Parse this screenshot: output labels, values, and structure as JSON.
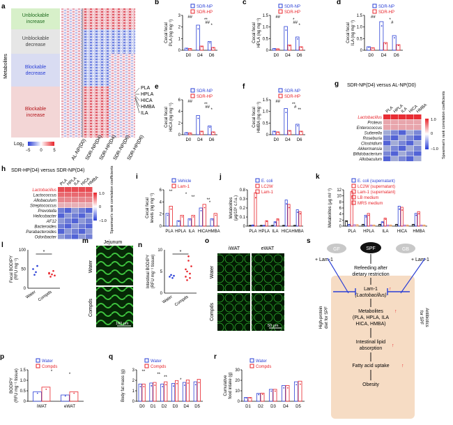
{
  "panel_labels": [
    "a",
    "b",
    "c",
    "d",
    "e",
    "f",
    "g",
    "h",
    "i",
    "j",
    "k",
    "l",
    "m",
    "n",
    "o",
    "p",
    "q",
    "r",
    "s"
  ],
  "colors": {
    "np": "#2a3fd6",
    "hp": "#e8232a",
    "green_box": "#d7f0c9",
    "grey_box": "#e6e6e6",
    "blue_box": "#d9dcf2",
    "pink_box": "#f3d6d6"
  },
  "heatmap_a": {
    "row_groups": [
      "Unblockable increase",
      "Unblockable decrease",
      "Blockable decrease",
      "Blockable increase"
    ],
    "ylabel": "Metabolites",
    "columns": [
      "AL-NP(D0)",
      "SDR-NP(D4)",
      "SDR-HP(D4)",
      "SDR-NP(D6)",
      "SDR-HP(D6)"
    ],
    "labels_right": [
      "PLA",
      "HPLA",
      "HICA",
      "HMBA",
      "ILA"
    ],
    "scale_title": "Log",
    "scale_title_sub": "2",
    "scale_ticks": [
      "−5",
      "0",
      "5"
    ]
  },
  "legend_np_hp": {
    "np": "SDR-NP",
    "hp": "SDR-HP"
  },
  "time_ticks": [
    "D0",
    "D4",
    "D6"
  ],
  "panel_b": {
    "ylabel1": "Cecal fecal",
    "ylabel2": "PLA (ng mg⁻¹)",
    "yticks": [
      "0",
      "1",
      "2",
      "3"
    ],
    "sig": [
      "##",
      "**",
      "##",
      "*"
    ]
  },
  "panel_c": {
    "ylabel1": "Cecal fecal",
    "ylabel2": "HPLA (ng mg⁻¹)",
    "yticks": [
      "0",
      "0.5",
      "1.0",
      "1.5"
    ],
    "sig": [
      "##",
      "*",
      "##",
      "*"
    ]
  },
  "panel_d": {
    "ylabel1": "Cecal fecal",
    "ylabel2": "ILA (ng mg⁻¹)",
    "yticks": [
      "0",
      "0.5",
      "1.0",
      "1.5"
    ],
    "sig": [
      "##",
      "*",
      "#"
    ]
  },
  "panel_e": {
    "ylabel1": "Cecal fecal",
    "ylabel2": "HICA (ng mg⁻¹)",
    "yticks": [
      "0",
      "2",
      "4",
      "6"
    ],
    "sig": [
      "##",
      "**",
      "##",
      "*"
    ]
  },
  "panel_f": {
    "ylabel1": "Cecal fecal",
    "ylabel2": "HMBA (ng mg⁻¹)",
    "yticks": [
      "0",
      "0.5",
      "1.0",
      "1.5"
    ],
    "sig": [
      "##",
      "**",
      "#",
      "**"
    ]
  },
  "panel_g": {
    "title": "SDR-NP(D4) versus AL-NP(D0)",
    "cols": [
      "PLA",
      "HPLA",
      "ILA",
      "HICA",
      "HMBA"
    ],
    "rows": [
      "Lactobacillus",
      "Proteus",
      "Enterococcus",
      "Sutterella",
      "Roseburia",
      "Clostridium",
      "Akkermansia",
      "Bifidobacterium",
      "Allobaculum"
    ],
    "scale_label": "Spearman's rank correlation coefficients",
    "scale_ticks": [
      "1.0",
      "0.5",
      "0",
      "−0.5",
      "−1.0"
    ]
  },
  "panel_h": {
    "title": "SDR-HP(D4) versus SDR-NP(D4)",
    "cols": [
      "PLA",
      "HPLA",
      "ILA",
      "HICA",
      "HMBA"
    ],
    "rows": [
      "Lactobacillus",
      "Lactococcus",
      "Allobaculum",
      "Streptococcus",
      "Prevotella",
      "Helicobacter",
      "AF12",
      "Bacteroides",
      "Parabacteroides",
      "Odoribacter"
    ],
    "scale_label": "Spearman's rank correlation coefficients",
    "scale_ticks": [
      "1.0",
      "0.5",
      "0",
      "−0.5",
      "−1.0"
    ]
  },
  "panel_i": {
    "legend": [
      "Vehicle",
      "Lam-1"
    ],
    "ylabel1": "Cecal fecal",
    "ylabel2": "levels (ng mg⁻¹)",
    "yticks": [
      "0",
      "2",
      "4",
      "6"
    ],
    "cats": [
      "PLA",
      "HPLA",
      "ILA",
      "HICA",
      "HMBA"
    ],
    "sig": [
      "**",
      "*",
      "**",
      "**",
      "*"
    ]
  },
  "panel_j": {
    "legend": [
      "E. coli",
      "LC2W",
      "Lam-1"
    ],
    "ylabel1": "Metabolites",
    "ylabel2": "(μg/10⁹ c.f.u.)",
    "yticks": [
      "0",
      "0.1",
      "0.2",
      "0.3",
      "0.5",
      "0.6",
      "0.7",
      "0.8"
    ],
    "cats": [
      "PLA",
      "HPLA",
      "ILA",
      "HICA",
      "HMBA"
    ]
  },
  "panel_k": {
    "legend": [
      "E. coli (supernatant)",
      "LC2W (supernatant)",
      "Lam-1 (supernatant)",
      "LB medium",
      "MRS medium"
    ],
    "ylabel": "Metabolites (μg ml⁻¹)",
    "yticks": [
      "0",
      "2",
      "4",
      "6",
      "8",
      "10",
      "12"
    ],
    "cats": [
      "PLA",
      "HPLA",
      "ILA",
      "HICA",
      "HMBA"
    ],
    "ns": "NS"
  },
  "panel_l": {
    "ylabel1": "Fecal BODIPY",
    "ylabel2": "(RFU mg⁻¹)",
    "yticks": [
      "0",
      "50",
      "100"
    ],
    "cats": [
      "Water",
      "Compds"
    ],
    "sig": "*"
  },
  "panel_m": {
    "title": "Jejunum",
    "rows": [
      "Water",
      "Compds"
    ],
    "scale": "100 μm"
  },
  "panel_n": {
    "ylabel1": "Intestinal BODIPY",
    "ylabel2": "(RFU mg⁻¹ tissue)",
    "yticks": [
      "0",
      "5",
      "10"
    ],
    "cats": [
      "Water",
      "Compds"
    ],
    "sig": "*"
  },
  "panel_o": {
    "cols": [
      "iWAT",
      "eWAT"
    ],
    "rows": [
      "Water",
      "Compds"
    ],
    "scale": "50 μm"
  },
  "panel_p": {
    "legend": [
      "Water",
      "Compds"
    ],
    "ylabel1": "BODIPY",
    "ylabel2": "(RFU mg⁻¹ tissue)",
    "yticks": [
      "0",
      "0.5",
      "1.0",
      "1.5"
    ],
    "cats": [
      "iWAT",
      "eWAT"
    ],
    "sig": [
      "*",
      "*"
    ]
  },
  "panel_q": {
    "legend": [
      "Water",
      "Compds"
    ],
    "ylabel": "Body fat mass (g)",
    "yticks": [
      "0",
      "1",
      "2",
      "3"
    ],
    "cats": [
      "D0",
      "D1",
      "D2",
      "D3",
      "D4",
      "D5"
    ],
    "sig": [
      "**",
      "**",
      "**",
      "*"
    ]
  },
  "panel_r": {
    "legend": [
      "Water",
      "Compds"
    ],
    "ylabel1": "Cumulative",
    "ylabel2": "food intake (g)",
    "yticks": [
      "0",
      "10",
      "20",
      "30"
    ],
    "cats": [
      "D1",
      "D2",
      "D3",
      "D4",
      "D5"
    ]
  },
  "panel_s": {
    "gf": "GF",
    "spf": "SPF",
    "gb": "GB",
    "lam_left": "+ Lam-1",
    "lam_right": "+ Lam-1",
    "refeed": "Refeeding after dietary restriction",
    "lam": "Lam-1",
    "lam_sub": "(Lactobacillus)",
    "metab": "Metabolites",
    "metab_sub": "(PLA, HPLA, ILA HICA, HMBA)",
    "lipid": "Intestinal lipid absorption",
    "fatty": "Fatty acid uptake",
    "obesity": "Obesity",
    "left_side": "High-protein diet for SPF",
    "right_side": "Antibiotics for SPF"
  }
}
